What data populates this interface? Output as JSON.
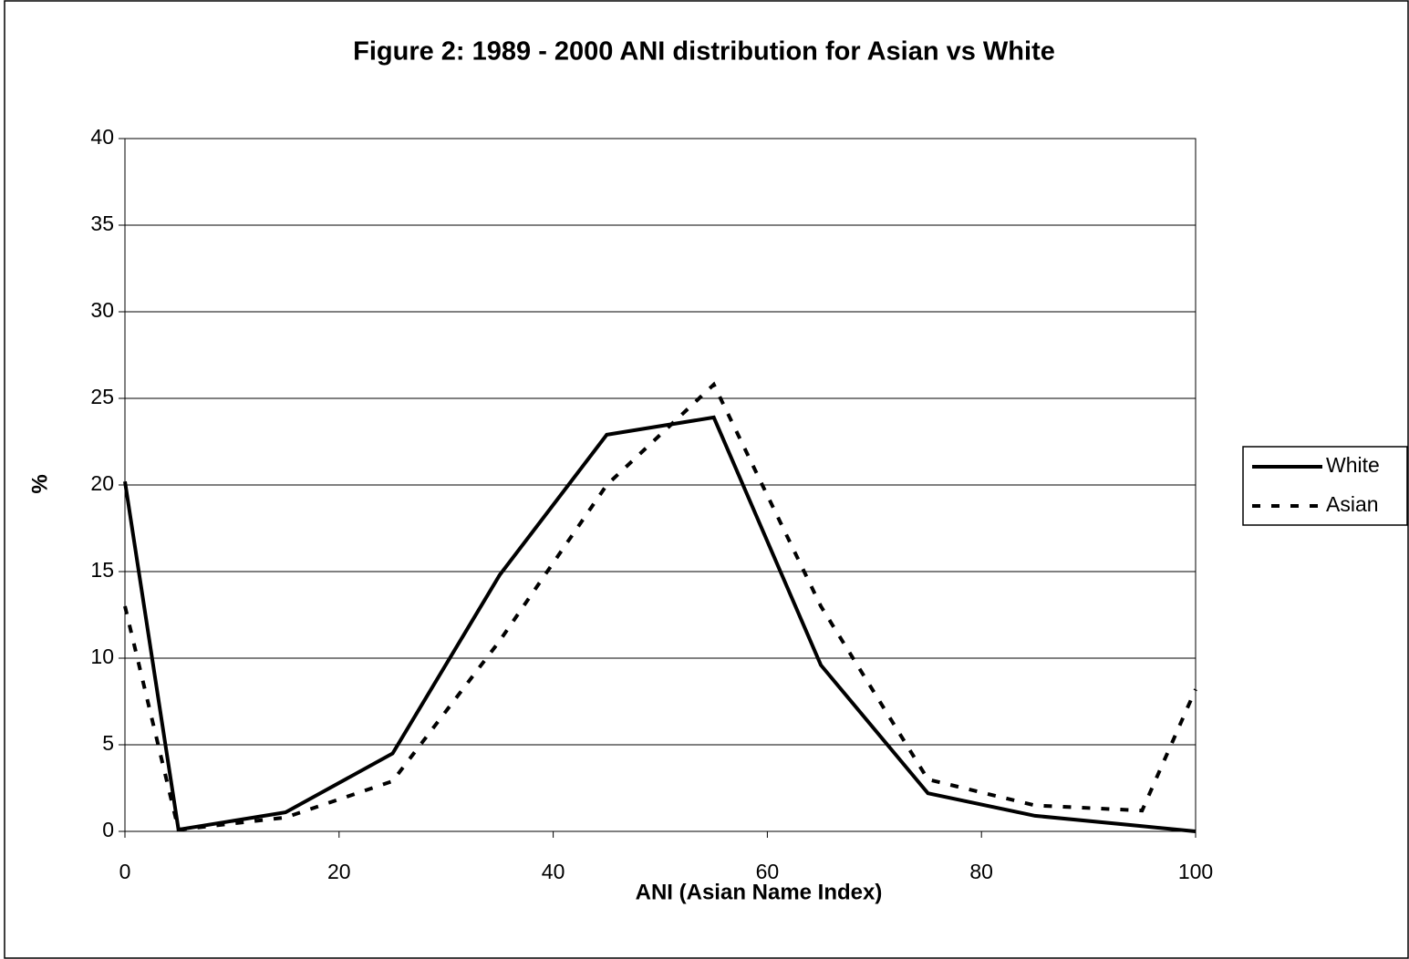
{
  "chart_data": {
    "type": "line",
    "title": "Figure 2: 1989 - 2000 ANI distribution for Asian vs White",
    "x_label": "ANI (Asian Name Index)",
    "y_label": "%",
    "x": [
      0,
      5,
      15,
      25,
      35,
      45,
      55,
      65,
      75,
      85,
      95,
      100
    ],
    "series": [
      {
        "name": "White",
        "color": "#000000",
        "dash": "solid",
        "values": [
          20.2,
          0.1,
          1.1,
          4.5,
          14.8,
          22.9,
          23.9,
          9.6,
          2.2,
          0.9,
          0.3,
          0.0
        ]
      },
      {
        "name": "Asian",
        "color": "#000000",
        "dash": "dashed",
        "values": [
          13.0,
          0.1,
          0.8,
          2.9,
          11.0,
          20.0,
          25.8,
          13.0,
          3.0,
          1.5,
          1.2,
          8.2
        ]
      }
    ],
    "xlim": [
      0,
      100
    ],
    "xticks": [
      0,
      20,
      40,
      60,
      80,
      100
    ],
    "ylim": [
      0,
      40
    ],
    "yticks": [
      0,
      5,
      10,
      15,
      20,
      25,
      30,
      35,
      40
    ],
    "grid": true,
    "legend": "right"
  }
}
